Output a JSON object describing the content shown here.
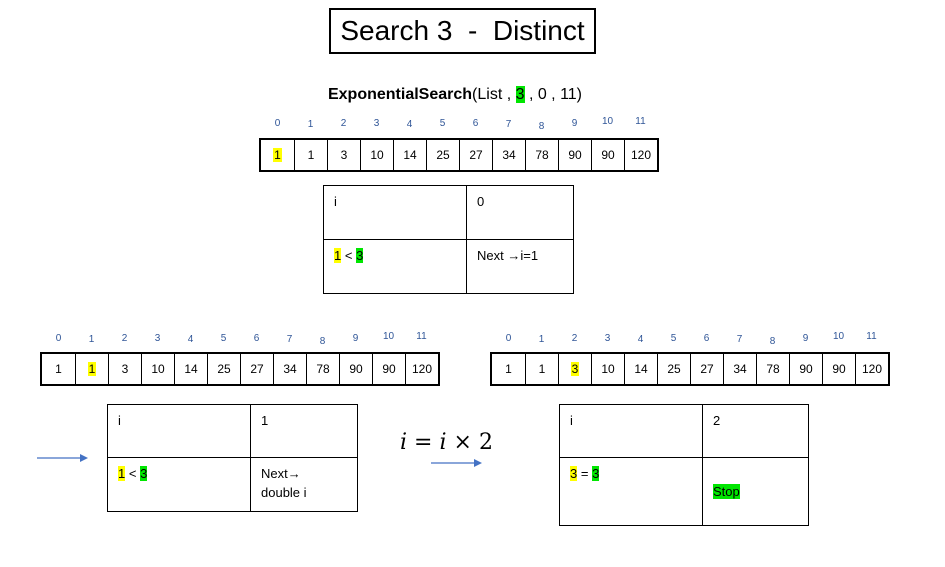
{
  "title": "Search 3  -  Distinct",
  "call": {
    "func": "ExponentialSearch",
    "open": "(List , ",
    "target": "3",
    "rest": " , 0 , 11)"
  },
  "indices": [
    "0",
    "1",
    "2",
    "3",
    "4",
    "5",
    "6",
    "7",
    "8",
    "9",
    "10",
    "11"
  ],
  "array": [
    "1",
    "1",
    "3",
    "10",
    "14",
    "25",
    "27",
    "34",
    "78",
    "90",
    "90",
    "120"
  ],
  "steps": [
    {
      "highlight_index": 0,
      "i_label": "i",
      "i_value": "0",
      "cmp_left": "1",
      "cmp_op": " < ",
      "cmp_right": "3",
      "action": "Next →i=1"
    },
    {
      "highlight_index": 1,
      "i_label": "i",
      "i_value": "1",
      "cmp_left": "1",
      "cmp_op": " < ",
      "cmp_right": "3",
      "action_line1": "Next→",
      "action_line2": "double i"
    },
    {
      "highlight_index": 2,
      "i_label": "i",
      "i_value": "2",
      "cmp_left": "3",
      "cmp_op": " = ",
      "cmp_right": "3",
      "action": "Stop"
    }
  ],
  "formula": {
    "lhs": "i",
    "eq": " = ",
    "rhs_var": "i",
    "times": " × ",
    "factor": "2"
  },
  "colors": {
    "highlight_yellow": "#ffff00",
    "highlight_green": "#00e600",
    "index_blue": "#2f5597",
    "arrow_blue": "#4472c4"
  }
}
